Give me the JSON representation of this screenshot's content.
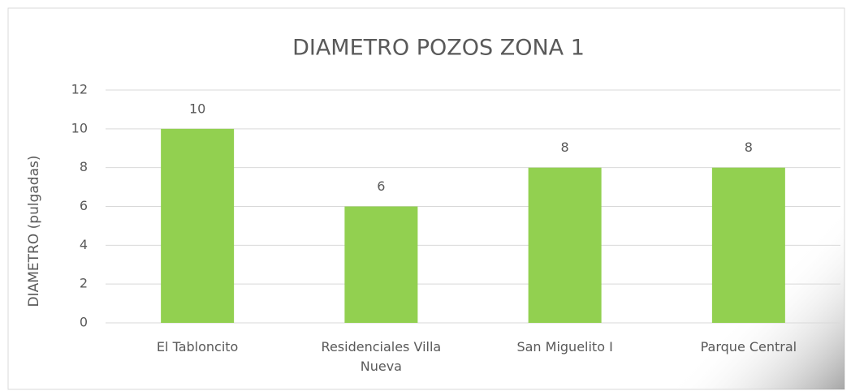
{
  "chart_data": {
    "type": "bar",
    "title": "DIAMETRO POZOS ZONA 1",
    "y_label": "DIAMETRO (pulgadas)",
    "categories": [
      "El Tabloncito",
      "Residenciales Villa Nueva",
      "San Miguelito I",
      "Parque Central"
    ],
    "values": [
      10,
      6,
      8,
      8
    ],
    "color": "#92d050",
    "ylim": [
      0,
      12
    ],
    "yticks": [
      0,
      2,
      4,
      6,
      8,
      10,
      12
    ],
    "grid": true
  }
}
